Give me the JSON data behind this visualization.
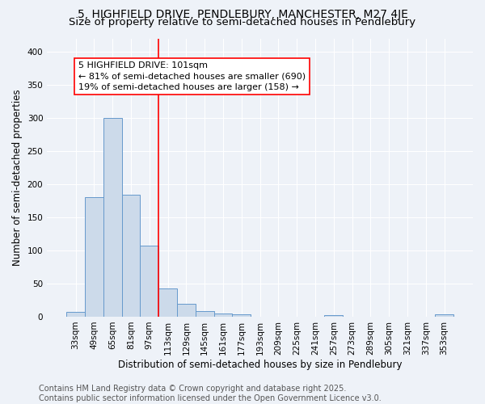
{
  "title_line1": "5, HIGHFIELD DRIVE, PENDLEBURY, MANCHESTER, M27 4JE",
  "title_line2": "Size of property relative to semi-detached houses in Pendlebury",
  "xlabel": "Distribution of semi-detached houses by size in Pendlebury",
  "ylabel": "Number of semi-detached properties",
  "bin_labels": [
    "33sqm",
    "49sqm",
    "65sqm",
    "81sqm",
    "97sqm",
    "113sqm",
    "129sqm",
    "145sqm",
    "161sqm",
    "177sqm",
    "193sqm",
    "209sqm",
    "225sqm",
    "241sqm",
    "257sqm",
    "273sqm",
    "289sqm",
    "305sqm",
    "321sqm",
    "337sqm",
    "353sqm"
  ],
  "bin_values": [
    7,
    181,
    300,
    184,
    107,
    43,
    20,
    8,
    5,
    3,
    0,
    0,
    0,
    0,
    2,
    0,
    0,
    0,
    0,
    0,
    4
  ],
  "bar_color": "#ccdaea",
  "bar_edge_color": "#6699cc",
  "vline_color": "red",
  "vline_x_idx": 4.5,
  "annotation_text": "5 HIGHFIELD DRIVE: 101sqm\n← 81% of semi-detached houses are smaller (690)\n19% of semi-detached houses are larger (158) →",
  "box_color": "white",
  "box_edge_color": "red",
  "ylim": [
    0,
    420
  ],
  "yticks": [
    0,
    50,
    100,
    150,
    200,
    250,
    300,
    350,
    400
  ],
  "footer_line1": "Contains HM Land Registry data © Crown copyright and database right 2025.",
  "footer_line2": "Contains public sector information licensed under the Open Government Licence v3.0.",
  "bg_color": "#eef2f8",
  "grid_color": "white",
  "title_fontsize": 10,
  "subtitle_fontsize": 9.5,
  "axis_label_fontsize": 8.5,
  "tick_fontsize": 7.5,
  "annotation_fontsize": 8,
  "footer_fontsize": 7
}
